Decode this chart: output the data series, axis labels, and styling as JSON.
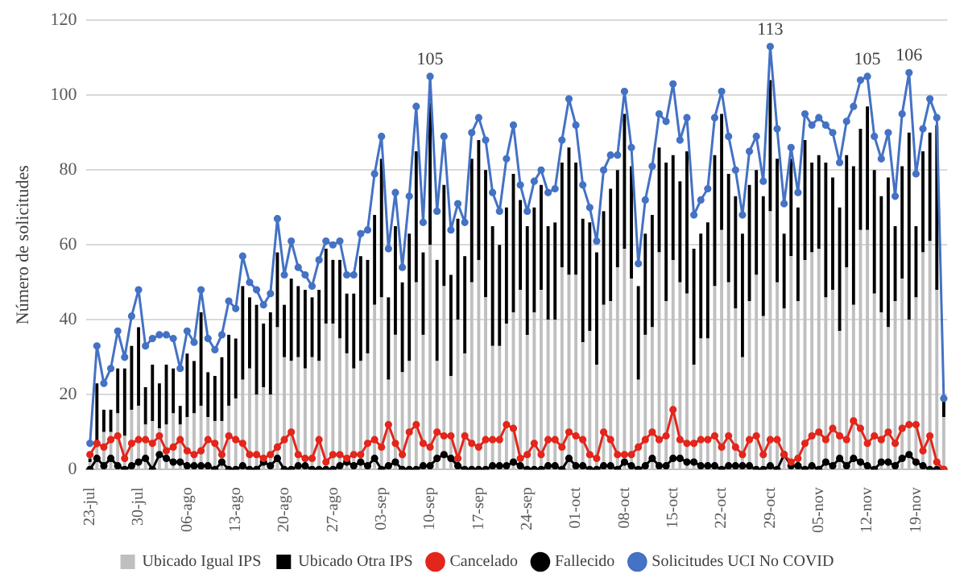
{
  "chart_data": {
    "type": "bar",
    "stacked": true,
    "ylabel": "Número de solicitudes",
    "ylim": [
      0,
      120
    ],
    "yticks": [
      0,
      20,
      40,
      60,
      80,
      100,
      120
    ],
    "grid": "y",
    "legend": "bottom",
    "marker": "circle",
    "line_style": "solid",
    "categories": [
      "23-jul",
      null,
      null,
      null,
      null,
      null,
      null,
      "30-jul",
      null,
      null,
      null,
      null,
      null,
      null,
      "06-ago",
      null,
      null,
      null,
      null,
      null,
      null,
      "13-ago",
      null,
      null,
      null,
      null,
      null,
      null,
      "20-ago",
      null,
      null,
      null,
      null,
      null,
      null,
      "27-ago",
      null,
      null,
      null,
      null,
      null,
      null,
      "03-sep",
      null,
      null,
      null,
      null,
      null,
      null,
      "10-sep",
      null,
      null,
      null,
      null,
      null,
      null,
      "17-sep",
      null,
      null,
      null,
      null,
      null,
      null,
      "24-sep",
      null,
      null,
      null,
      null,
      null,
      null,
      "01-oct",
      null,
      null,
      null,
      null,
      null,
      null,
      "08-oct",
      null,
      null,
      null,
      null,
      null,
      null,
      "15-oct",
      null,
      null,
      null,
      null,
      null,
      null,
      "22-oct",
      null,
      null,
      null,
      null,
      null,
      null,
      "29-oct",
      null,
      null,
      null,
      null,
      null,
      null,
      "05-nov",
      null,
      null,
      null,
      null,
      null,
      null,
      "12-nov",
      null,
      null,
      null,
      null,
      null,
      null,
      "19-nov",
      null,
      null,
      null,
      null
    ],
    "series": [
      {
        "name": "Ubicado Igual IPS",
        "color": "#bfbfbf",
        "values": [
          2,
          6,
          10,
          10,
          15,
          9,
          16,
          17,
          12,
          13,
          11,
          12,
          15,
          12,
          14,
          15,
          17,
          14,
          13,
          13,
          17,
          19,
          24,
          27,
          20,
          22,
          20,
          38,
          30,
          29,
          30,
          27,
          30,
          29,
          39,
          39,
          35,
          31,
          27,
          29,
          31,
          44,
          46,
          24,
          36,
          26,
          29,
          50,
          36,
          60,
          29,
          49,
          25,
          40,
          31,
          50,
          56,
          46,
          33,
          33,
          39,
          42,
          48,
          36,
          42,
          48,
          40,
          40,
          54,
          52,
          52,
          34,
          37,
          28,
          44,
          45,
          54,
          59,
          51,
          24,
          36,
          38,
          58,
          45,
          56,
          50,
          47,
          28,
          35,
          35,
          49,
          64,
          50,
          43,
          30,
          45,
          52,
          41,
          69,
          50,
          43,
          57,
          45,
          56,
          58,
          59,
          46,
          48,
          37,
          54,
          44,
          64,
          64,
          47,
          42,
          38,
          45,
          51,
          40,
          46,
          58,
          61,
          48,
          14
        ]
      },
      {
        "name": "Ubicado Otra IPS",
        "color": "#000000",
        "values": [
          1,
          17,
          6,
          6,
          12,
          18,
          17,
          21,
          10,
          15,
          12,
          16,
          12,
          5,
          17,
          14,
          25,
          12,
          12,
          17,
          19,
          16,
          25,
          19,
          24,
          17,
          22,
          20,
          14,
          22,
          19,
          21,
          16,
          19,
          20,
          17,
          21,
          16,
          20,
          28,
          25,
          24,
          37,
          22,
          29,
          24,
          34,
          35,
          22,
          38,
          27,
          27,
          27,
          27,
          26,
          33,
          32,
          34,
          32,
          27,
          31,
          37,
          24,
          29,
          28,
          28,
          25,
          26,
          28,
          34,
          30,
          33,
          29,
          30,
          25,
          30,
          26,
          36,
          30,
          25,
          27,
          30,
          28,
          37,
          28,
          27,
          38,
          31,
          28,
          31,
          35,
          31,
          29,
          30,
          33,
          31,
          28,
          32,
          35,
          33,
          20,
          26,
          25,
          32,
          24,
          25,
          36,
          30,
          33,
          30,
          37,
          27,
          33,
          33,
          31,
          40,
          20,
          30,
          50,
          19,
          27,
          29,
          44,
          5
        ]
      },
      {
        "name": "Cancelado",
        "type": "line",
        "color": "#e3261c",
        "values": [
          4,
          7,
          6,
          8,
          9,
          3,
          7,
          8,
          8,
          7,
          9,
          5,
          6,
          8,
          5,
          4,
          5,
          8,
          7,
          4,
          9,
          8,
          7,
          4,
          4,
          3,
          4,
          6,
          8,
          10,
          4,
          3,
          3,
          8,
          2,
          4,
          4,
          3,
          4,
          4,
          7,
          8,
          6,
          12,
          7,
          4,
          10,
          12,
          7,
          6,
          10,
          9,
          9,
          3,
          9,
          7,
          6,
          8,
          8,
          8,
          12,
          11,
          3,
          4,
          7,
          4,
          8,
          8,
          6,
          10,
          9,
          8,
          4,
          3,
          10,
          8,
          4,
          4,
          4,
          6,
          8,
          10,
          8,
          9,
          16,
          8,
          7,
          7,
          8,
          8,
          9,
          6,
          9,
          6,
          4,
          8,
          9,
          4,
          8,
          8,
          4,
          2,
          3,
          7,
          9,
          10,
          8,
          11,
          9,
          8,
          13,
          11,
          7,
          9,
          8,
          10,
          7,
          11,
          12,
          12,
          5,
          9,
          2,
          0
        ]
      },
      {
        "name": "Fallecido",
        "type": "line",
        "color": "#000000",
        "values": [
          0,
          3,
          1,
          3,
          1,
          0,
          1,
          2,
          3,
          0,
          4,
          3,
          2,
          2,
          1,
          1,
          1,
          1,
          0,
          2,
          0,
          0,
          1,
          0,
          0,
          2,
          1,
          3,
          0,
          0,
          1,
          1,
          0,
          0,
          0,
          0,
          1,
          2,
          1,
          2,
          1,
          3,
          0,
          1,
          2,
          0,
          0,
          0,
          1,
          1,
          3,
          4,
          3,
          1,
          0,
          0,
          0,
          0,
          1,
          1,
          1,
          2,
          1,
          0,
          0,
          0,
          1,
          1,
          0,
          3,
          1,
          1,
          0,
          0,
          1,
          1,
          0,
          2,
          1,
          0,
          1,
          3,
          1,
          1,
          3,
          3,
          2,
          2,
          1,
          1,
          1,
          0,
          1,
          1,
          1,
          1,
          0,
          0,
          1,
          0,
          4,
          1,
          1,
          0,
          1,
          0,
          2,
          1,
          3,
          1,
          3,
          2,
          1,
          0,
          2,
          2,
          1,
          3,
          4,
          2,
          1,
          0,
          0,
          0
        ]
      },
      {
        "name": "Solicitudes UCI No COVID",
        "type": "line",
        "color": "#4472c4",
        "values": [
          7,
          33,
          23,
          27,
          37,
          30,
          41,
          48,
          33,
          35,
          36,
          36,
          35,
          27,
          37,
          34,
          48,
          35,
          32,
          36,
          45,
          43,
          57,
          50,
          48,
          44,
          47,
          67,
          52,
          61,
          54,
          52,
          49,
          56,
          61,
          60,
          61,
          52,
          52,
          63,
          64,
          79,
          89,
          59,
          74,
          54,
          73,
          97,
          66,
          105,
          69,
          89,
          64,
          71,
          66,
          90,
          94,
          88,
          74,
          69,
          83,
          92,
          76,
          69,
          77,
          80,
          74,
          75,
          88,
          99,
          92,
          76,
          70,
          61,
          80,
          84,
          84,
          101,
          86,
          55,
          72,
          81,
          95,
          93,
          103,
          88,
          94,
          68,
          72,
          75,
          94,
          101,
          89,
          80,
          68,
          85,
          89,
          77,
          113,
          91,
          71,
          86,
          74,
          95,
          92,
          94,
          92,
          90,
          82,
          93,
          97,
          104,
          105,
          89,
          83,
          90,
          73,
          95,
          106,
          79,
          91,
          99,
          94,
          19
        ],
        "value_labels": [
          null,
          null,
          null,
          null,
          null,
          null,
          null,
          null,
          null,
          null,
          null,
          null,
          null,
          null,
          null,
          null,
          null,
          null,
          null,
          null,
          null,
          null,
          null,
          null,
          null,
          null,
          null,
          null,
          null,
          null,
          null,
          null,
          null,
          null,
          null,
          null,
          null,
          null,
          null,
          null,
          null,
          null,
          null,
          null,
          null,
          null,
          null,
          null,
          null,
          "105",
          null,
          null,
          null,
          null,
          null,
          null,
          null,
          null,
          null,
          null,
          null,
          null,
          null,
          null,
          null,
          null,
          null,
          null,
          null,
          null,
          null,
          null,
          null,
          null,
          null,
          null,
          null,
          null,
          null,
          null,
          null,
          null,
          null,
          null,
          null,
          null,
          null,
          null,
          null,
          null,
          null,
          null,
          null,
          null,
          null,
          null,
          null,
          null,
          "113",
          null,
          null,
          null,
          null,
          null,
          null,
          null,
          null,
          null,
          null,
          null,
          null,
          null,
          "105",
          null,
          null,
          null,
          null,
          null,
          "106",
          null,
          null,
          null,
          null,
          null
        ]
      }
    ]
  }
}
